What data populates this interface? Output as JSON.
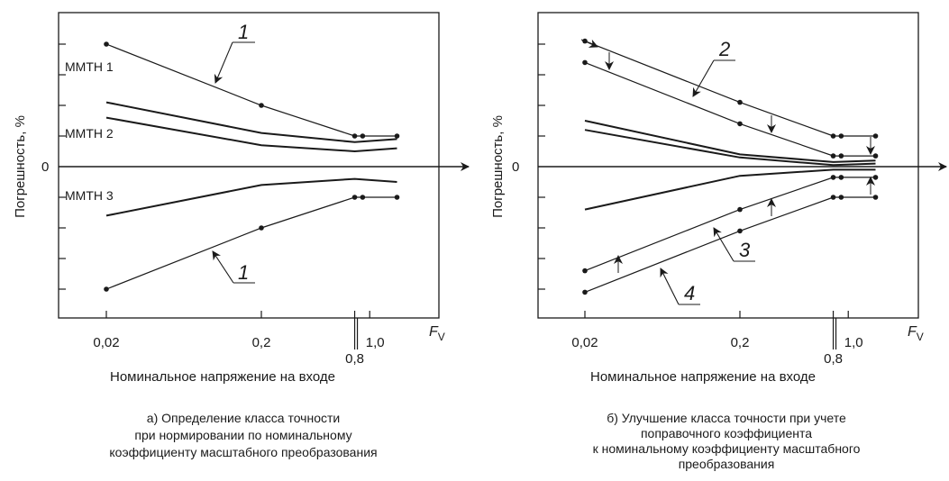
{
  "charts": [
    {
      "id": "a",
      "caption": [
        "а) Определение класса точности",
        "при нормировании по номинальному",
        "коэффициенту масштабного преобразования"
      ],
      "xlabel": "Номинальное напряжение на входе",
      "ylabel": "Погрешность, %",
      "x_axis_name": "F",
      "x_axis_sub": "V",
      "zero_label": "0",
      "x_ticks": [
        {
          "label": "0,02",
          "value": 0.02
        },
        {
          "label": "0,2",
          "value": 0.2
        },
        {
          "label": "0,8",
          "value": 0.8
        },
        {
          "label": "1,0",
          "value": 1.0
        }
      ]
    },
    {
      "id": "b",
      "caption": [
        "б) Улучшение класса точности при учете",
        "поправочного коэффициента",
        "к номинальному коэффициенту масштабного",
        "преобразования"
      ],
      "xlabel": "Номинальное напряжение на входе",
      "ylabel": "Погрешность, %",
      "x_axis_name": "F",
      "x_axis_sub": "V",
      "zero_label": "0",
      "x_ticks": [
        {
          "label": "0,02",
          "value": 0.02
        },
        {
          "label": "0,2",
          "value": 0.2
        },
        {
          "label": "0,8",
          "value": 0.8
        },
        {
          "label": "1,0",
          "value": 1.0
        }
      ]
    }
  ],
  "chart_data": [
    {
      "type": "line",
      "xscale": "log",
      "xlabel": "Номинальное напряжение на входе",
      "ylabel": "Погрешность, %",
      "xlim": [
        0.012,
        2.5
      ],
      "ylim": [
        -5,
        5
      ],
      "series": [
        {
          "name": "1",
          "x": [
            0.02,
            0.2,
            0.8,
            0.9,
            1.5
          ],
          "y": [
            4,
            2,
            1,
            1,
            1
          ],
          "markers": true
        },
        {
          "name": "",
          "x": [
            0.02,
            0.2,
            0.8,
            1.5
          ],
          "y": [
            2.1,
            1.1,
            0.8,
            0.9
          ]
        },
        {
          "name": "",
          "x": [
            0.02,
            0.2,
            0.8,
            1.5
          ],
          "y": [
            1.6,
            0.7,
            0.5,
            0.6
          ]
        },
        {
          "name": "",
          "x": [
            0.02,
            0.2,
            0.8,
            1.5
          ],
          "y": [
            -1.6,
            -0.6,
            -0.4,
            -0.5
          ]
        },
        {
          "name": "1",
          "x": [
            0.02,
            0.2,
            0.8,
            0.9,
            1.5
          ],
          "y": [
            -4,
            -2,
            -1,
            -1,
            -1
          ],
          "markers": true
        }
      ],
      "annotations": [
        {
          "text": "ММТН 1",
          "x": 0.03,
          "y": 3.2
        },
        {
          "text": "ММТН 2",
          "x": 0.03,
          "y": 1.1
        },
        {
          "text": "ММТН 3",
          "x": 0.03,
          "y": -0.9
        }
      ]
    },
    {
      "type": "line",
      "xscale": "log",
      "xlabel": "Номинальное напряжение на входе",
      "ylabel": "Погрешность, %",
      "xlim": [
        0.012,
        2.5
      ],
      "ylim": [
        -5,
        5
      ],
      "series": [
        {
          "name": "2",
          "x": [
            0.02,
            0.2,
            0.8,
            0.9,
            1.5
          ],
          "y": [
            4.1,
            2.1,
            1,
            1,
            1
          ],
          "markers": true
        },
        {
          "name": "",
          "x": [
            0.02,
            0.2,
            0.8,
            0.9,
            1.5
          ],
          "y": [
            3.4,
            1.4,
            0.35,
            0.35,
            0.35
          ],
          "markers": true
        },
        {
          "name": "",
          "x": [
            0.02,
            0.2,
            0.8,
            1.5
          ],
          "y": [
            1.5,
            0.4,
            0.15,
            0.2
          ]
        },
        {
          "name": "",
          "x": [
            0.02,
            0.2,
            0.8,
            1.5
          ],
          "y": [
            1.2,
            0.3,
            0.05,
            0.1
          ]
        },
        {
          "name": "",
          "x": [
            0.02,
            0.2,
            0.8,
            1.5
          ],
          "y": [
            -1.4,
            -0.3,
            -0.1,
            -0.1
          ]
        },
        {
          "name": "3",
          "x": [
            0.02,
            0.2,
            0.8,
            0.9,
            1.5
          ],
          "y": [
            -3.4,
            -1.4,
            -0.35,
            -0.35,
            -0.35
          ],
          "markers": true
        },
        {
          "name": "4",
          "x": [
            0.02,
            0.2,
            0.8,
            0.9,
            1.5
          ],
          "y": [
            -4.1,
            -2.1,
            -1,
            -1,
            -1
          ],
          "markers": true
        }
      ]
    }
  ]
}
